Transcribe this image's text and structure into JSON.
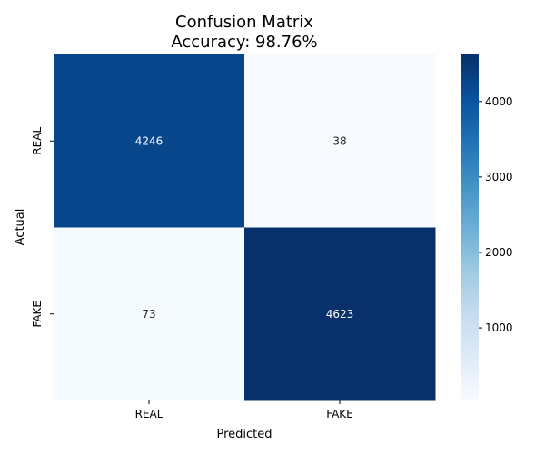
{
  "chart_data": {
    "type": "heatmap",
    "title": "Confusion Matrix",
    "subtitle": "Accuracy: 98.76%",
    "xlabel": "Predicted",
    "ylabel": "Actual",
    "x_categories": [
      "REAL",
      "FAKE"
    ],
    "y_categories": [
      "REAL",
      "FAKE"
    ],
    "values": [
      [
        4246,
        38
      ],
      [
        73,
        4623
      ]
    ],
    "colormap": "Blues",
    "color_range": [
      38,
      4623
    ],
    "colorbar_ticks": [
      1000,
      2000,
      3000,
      4000
    ],
    "legend": "colorbar-right",
    "grid": false
  }
}
